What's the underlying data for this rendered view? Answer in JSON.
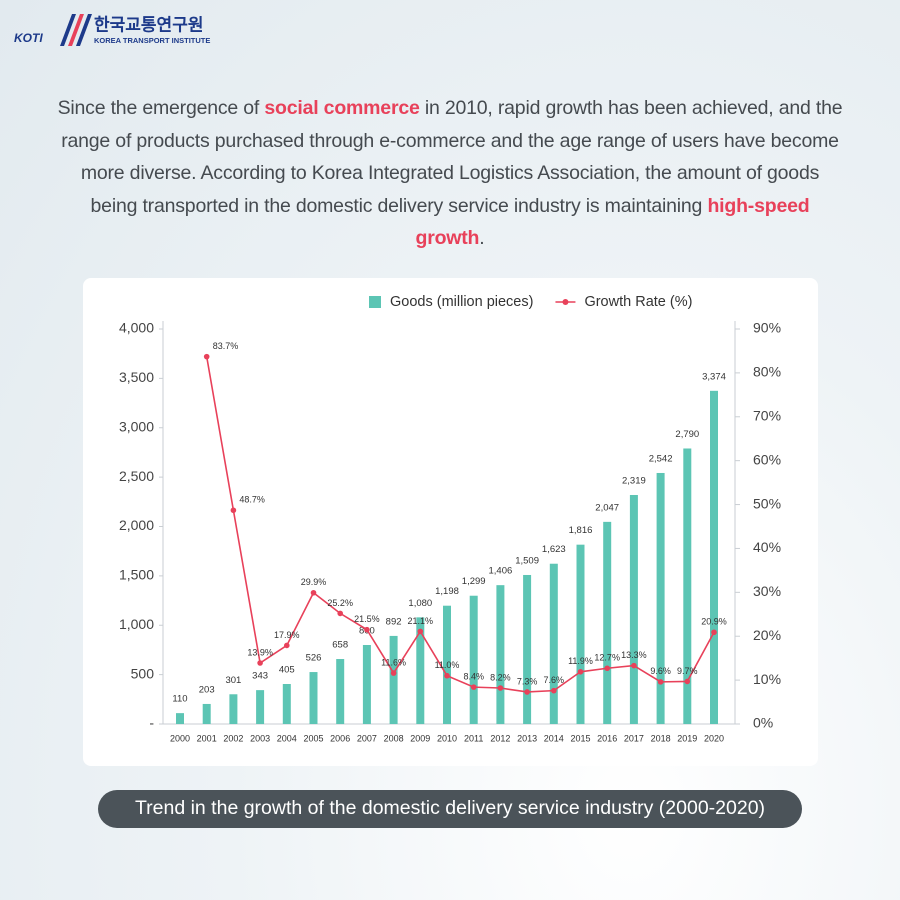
{
  "logo": {
    "mark": "KOTI",
    "name_ko": "한국교통연구원",
    "name_en": "KOREA TRANSPORT INSTITUTE"
  },
  "intro": {
    "parts": [
      {
        "text": "Since the emergence of "
      },
      {
        "text": "social commerce",
        "highlight": true
      },
      {
        "text": " in 2010, rapid growth has been achieved, and the range of products purchased through e-commerce and the age range of users have become more diverse. According to Korea Integrated Logistics Association, the amount of goods being transported in the domestic delivery service industry is maintaining "
      },
      {
        "text": "high-speed growth",
        "highlight": true
      },
      {
        "text": "."
      }
    ]
  },
  "chart_data": {
    "type": "bar",
    "categories": [
      "2000",
      "2001",
      "2002",
      "2003",
      "2004",
      "2005",
      "2006",
      "2007",
      "2008",
      "2009",
      "2010",
      "2011",
      "2012",
      "2013",
      "2014",
      "2015",
      "2016",
      "2017",
      "2018",
      "2019",
      "2020"
    ],
    "series": [
      {
        "name": "Goods (million pieces)",
        "type": "bar",
        "color": "#5cc5b4",
        "values": [
          110,
          203,
          301,
          343,
          405,
          526,
          658,
          800,
          892,
          1080,
          1198,
          1299,
          1406,
          1509,
          1623,
          1816,
          2047,
          2319,
          2542,
          2790,
          3374
        ],
        "value_labels": [
          "110",
          "203",
          "301",
          "343",
          "405",
          "526",
          "658",
          "800",
          "892",
          "1,080",
          "1,198",
          "1,299",
          "1,406",
          "1,509",
          "1,623",
          "1,816",
          "2,047",
          "2,319",
          "2,542",
          "2,790",
          "3,374"
        ]
      },
      {
        "name": "Growth Rate (%)",
        "type": "line",
        "axis": "y2",
        "color": "#e8415a",
        "values": [
          null,
          83.7,
          48.7,
          13.9,
          17.9,
          29.9,
          25.2,
          21.5,
          11.6,
          21.1,
          11.0,
          8.4,
          8.2,
          7.3,
          7.6,
          11.9,
          12.7,
          13.3,
          9.6,
          9.7,
          20.9
        ],
        "value_labels": [
          null,
          "83.7%",
          "48.7%",
          "13.9%",
          "17.9%",
          "29.9%",
          "25.2%",
          "21.5%",
          "11.6%",
          "21.1%",
          "11.0%",
          "8.4%",
          "8.2%",
          "7.3%",
          "7.6%",
          "11.9%",
          "12.7%",
          "13.3%",
          "9.6%",
          "9.7%",
          "20.9%"
        ]
      }
    ],
    "ylim": [
      0,
      4000
    ],
    "yticks": [
      {
        "value": 0,
        "label": "-"
      },
      500,
      {
        "value": 1000,
        "label": "1,000"
      },
      {
        "value": 1500,
        "label": "1,500"
      },
      {
        "value": 2000,
        "label": "2,000"
      },
      {
        "value": 2500,
        "label": "2,500"
      },
      {
        "value": 3000,
        "label": "3,000"
      },
      {
        "value": 3500,
        "label": "3,500"
      },
      {
        "value": 4000,
        "label": "4,000"
      }
    ],
    "y2lim": [
      0,
      90
    ],
    "y2ticks": [
      {
        "value": 0,
        "label": "0%"
      },
      {
        "value": 10,
        "label": "10%"
      },
      {
        "value": 20,
        "label": "20%"
      },
      {
        "value": 30,
        "label": "30%"
      },
      {
        "value": 40,
        "label": "40%"
      },
      {
        "value": 50,
        "label": "50%"
      },
      {
        "value": 60,
        "label": "60%"
      },
      {
        "value": 70,
        "label": "70%"
      },
      {
        "value": 80,
        "label": "80%"
      },
      {
        "value": 90,
        "label": "90%"
      }
    ],
    "legend": "top",
    "caption": "Trend in the growth of the domestic delivery service industry (2000-2020)"
  }
}
